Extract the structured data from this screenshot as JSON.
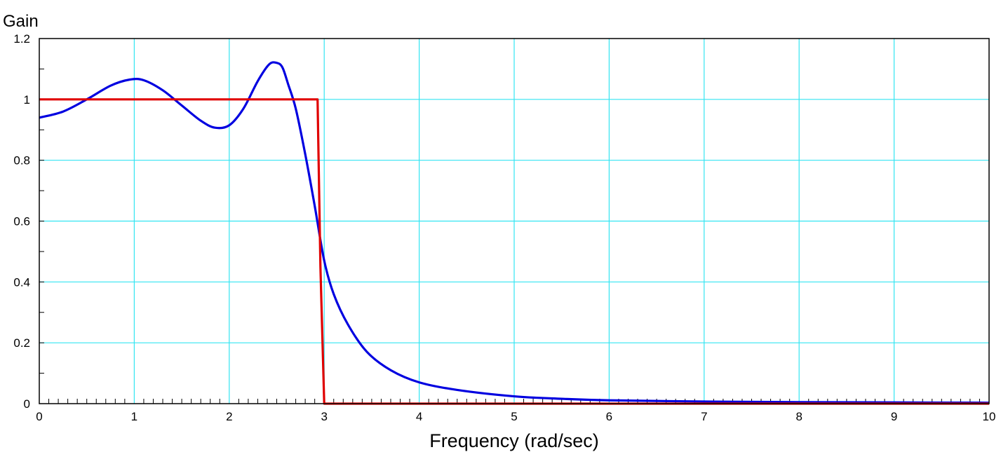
{
  "chart_data": {
    "type": "line",
    "title": "",
    "xlabel": "Frequency (rad/sec)",
    "ylabel": "Gain",
    "xlim": [
      0,
      10
    ],
    "ylim": [
      0,
      1.2
    ],
    "grid": true,
    "x_ticks": [
      "0",
      "1",
      "2",
      "3",
      "4",
      "5",
      "6",
      "7",
      "8",
      "9",
      "10"
    ],
    "y_ticks": [
      "0",
      "0.2",
      "0.4",
      "0.6",
      "0.8",
      "1",
      "1.2"
    ],
    "colors": {
      "grid": "#33e5f2",
      "series_blue": "#0000e0",
      "series_red": "#e00000"
    },
    "series": [
      {
        "color": "#0000e0",
        "x": [
          0,
          0.25,
          0.5,
          0.75,
          0.95,
          1.1,
          1.3,
          1.5,
          1.7,
          1.85,
          2.0,
          2.15,
          2.3,
          2.42,
          2.5,
          2.56,
          2.62,
          2.7,
          2.8,
          2.9,
          3.0,
          3.1,
          3.25,
          3.45,
          3.7,
          4.0,
          4.4,
          5.0,
          5.5,
          6.0,
          7.0,
          8.0,
          9.0,
          10.0
        ],
        "y": [
          0.94,
          0.96,
          1.0,
          1.045,
          1.065,
          1.063,
          1.03,
          0.98,
          0.93,
          0.907,
          0.915,
          0.97,
          1.06,
          1.115,
          1.12,
          1.105,
          1.05,
          0.97,
          0.82,
          0.65,
          0.47,
          0.36,
          0.26,
          0.17,
          0.11,
          0.07,
          0.045,
          0.024,
          0.016,
          0.011,
          0.007,
          0.005,
          0.004,
          0.003
        ]
      },
      {
        "color": "#e00000",
        "x": [
          0,
          2.93,
          2.96,
          3.0,
          10.0
        ],
        "y": [
          1.0,
          1.0,
          0.45,
          0.0,
          0.0
        ]
      }
    ]
  }
}
